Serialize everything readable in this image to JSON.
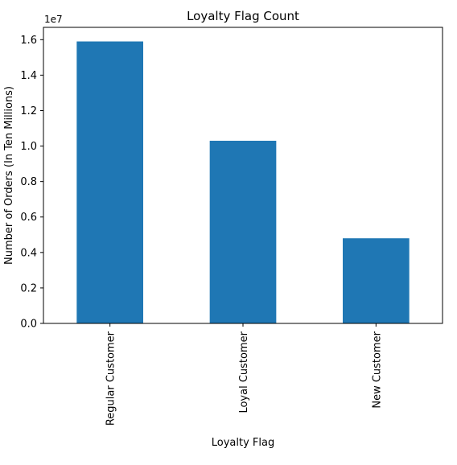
{
  "chart_data": {
    "type": "bar",
    "title": "Loyalty Flag Count",
    "xlabel": "Loyalty Flag",
    "ylabel": "Number of Orders (In Ten Millions)",
    "y_scale_label": "1e7",
    "categories": [
      "Regular Customer",
      "Loyal Customer",
      "New Customer"
    ],
    "values": [
      15900000,
      10300000,
      4800000
    ],
    "ylim": [
      0,
      16695000
    ],
    "yticks": [
      0.0,
      0.2,
      0.4,
      0.6,
      0.8,
      1.0,
      1.2,
      1.4,
      1.6
    ],
    "ytick_labels": [
      "0.0",
      "0.2",
      "0.4",
      "0.6",
      "0.8",
      "1.0",
      "1.2",
      "1.4",
      "1.6"
    ],
    "ytick_multiplier": 10000000,
    "bar_color": "#1f77b4",
    "grid": false,
    "legend": "none"
  }
}
